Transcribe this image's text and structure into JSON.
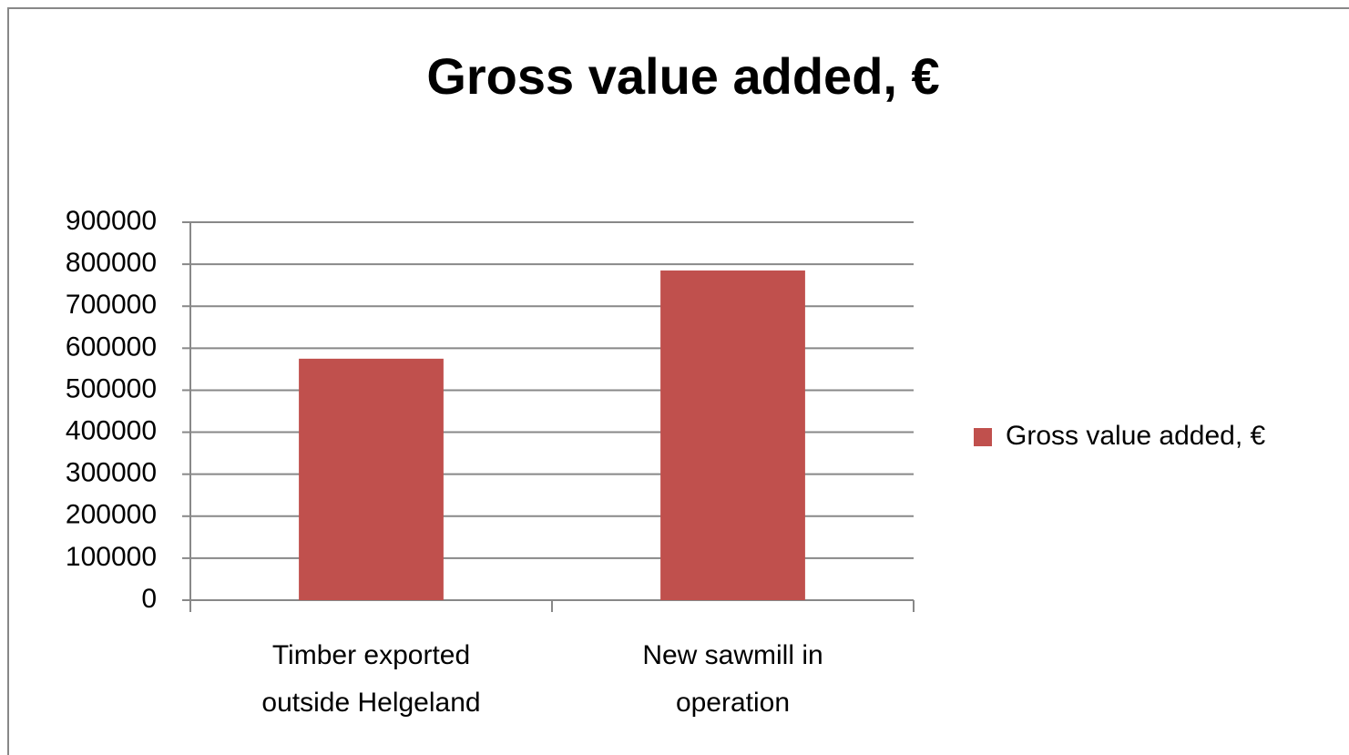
{
  "chart_data": {
    "type": "bar",
    "title": "Gross value added, €",
    "categories": [
      "Timber exported outside Helgeland",
      "New sawmill in operation"
    ],
    "series": [
      {
        "name": "Gross value added, €",
        "color": "#c0504d",
        "values": [
          575000,
          785000
        ]
      }
    ],
    "ylim": [
      0,
      900000
    ],
    "yticks": [
      0,
      100000,
      200000,
      300000,
      400000,
      500000,
      600000,
      700000,
      800000,
      900000
    ],
    "grid": true,
    "legend": "right"
  }
}
